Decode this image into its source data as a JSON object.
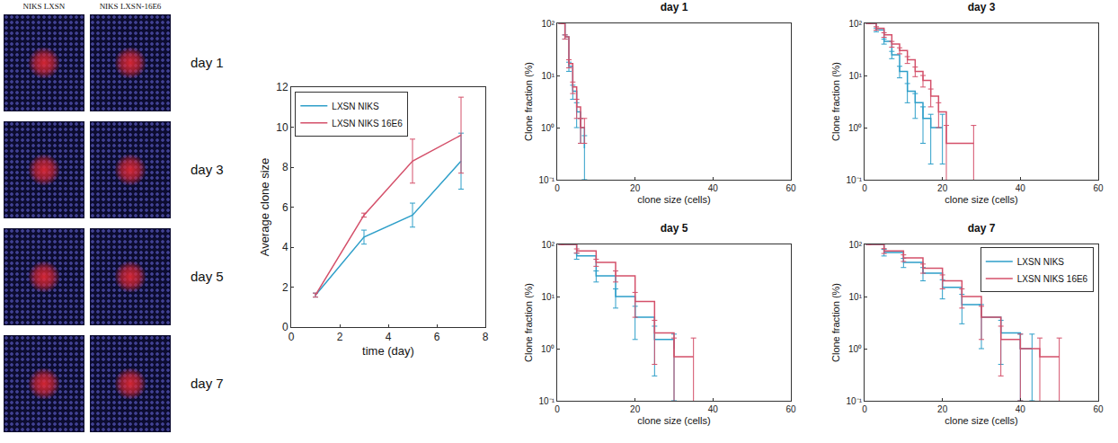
{
  "image_panel": {
    "columns": [
      "NIKS LXSN",
      "NIKS LXSN-16E6"
    ],
    "rows": [
      "day 1",
      "day 3",
      "day 5",
      "day 7"
    ]
  },
  "chart_data": [
    {
      "type": "line",
      "line_style": "solid",
      "xlabel": "time (day)",
      "ylabel": "Average clone size",
      "xlim": [
        0,
        8
      ],
      "xticks": [
        0,
        2,
        4,
        6,
        8
      ],
      "ylim": [
        0,
        12
      ],
      "yticks": [
        0,
        2,
        4,
        6,
        8,
        10,
        12
      ],
      "grid": false,
      "legend": "upper left",
      "series": [
        {
          "name": "LXSN NIKS",
          "color": "#2e9fc9",
          "x": [
            1,
            3,
            5,
            7
          ],
          "values": [
            1.6,
            4.5,
            5.6,
            8.3
          ],
          "errors": [
            0.1,
            0.35,
            0.6,
            1.4
          ]
        },
        {
          "name": "LXSN NIKS 16E6",
          "color": "#d4506a",
          "x": [
            1,
            3,
            5,
            7
          ],
          "values": [
            1.6,
            5.6,
            8.3,
            9.6
          ],
          "errors": [
            0.1,
            0.1,
            1.1,
            1.9
          ]
        }
      ]
    },
    {
      "type": "line",
      "line_style": "step",
      "title": "day 1",
      "xlabel": "clone size (cells)",
      "ylabel": "Clone fraction (%)",
      "xlim": [
        0,
        60
      ],
      "xticks": [
        0,
        20,
        40,
        60
      ],
      "ylim": [
        0.1,
        100
      ],
      "log": "y",
      "yticks": [
        {
          "value": 0.1,
          "label": "10⁻¹"
        },
        {
          "value": 1,
          "label": "10⁰"
        },
        {
          "value": 10,
          "label": "10¹"
        },
        {
          "value": 100,
          "label": "10²"
        }
      ],
      "series": [
        {
          "name": "LXSN NIKS",
          "color": "#2e9fc9",
          "x": [
            1,
            2,
            3,
            4,
            5,
            6,
            7
          ],
          "values": [
            100,
            55,
            15,
            5,
            2,
            1,
            0.4
          ],
          "errors": [
            0,
            5,
            3,
            1.5,
            1,
            0.5,
            0.3
          ]
        },
        {
          "name": "LXSN NIKS 16E6",
          "color": "#d4506a",
          "x": [
            1,
            2,
            3,
            4,
            5,
            6,
            7
          ],
          "values": [
            100,
            55,
            17,
            6,
            2.5,
            1,
            1
          ],
          "errors": [
            0,
            5,
            3,
            1.5,
            1,
            0.5,
            0.5
          ]
        }
      ]
    },
    {
      "type": "line",
      "line_style": "step",
      "title": "day 3",
      "xlabel": "clone size (cells)",
      "ylabel": "Clone fraction (%)",
      "xlim": [
        0,
        60
      ],
      "xticks": [
        0,
        20,
        40,
        60
      ],
      "ylim": [
        0.1,
        100
      ],
      "log": "y",
      "yticks": [
        {
          "value": 0.1,
          "label": "10⁻¹"
        },
        {
          "value": 1,
          "label": "10⁰"
        },
        {
          "value": 10,
          "label": "10¹"
        },
        {
          "value": 100,
          "label": "10²"
        }
      ],
      "series": [
        {
          "name": "LXSN NIKS",
          "color": "#2e9fc9",
          "x": [
            1,
            3,
            5,
            7,
            9,
            11,
            13,
            15,
            17,
            20
          ],
          "values": [
            100,
            75,
            45,
            25,
            12,
            5,
            3,
            1.5,
            1,
            1
          ],
          "errors": [
            0,
            6,
            5,
            4,
            3,
            2,
            1.5,
            1,
            0.8,
            0.8
          ]
        },
        {
          "name": "LXSN NIKS 16E6",
          "color": "#d4506a",
          "x": [
            1,
            3,
            5,
            7,
            9,
            11,
            13,
            15,
            17,
            19,
            21,
            28
          ],
          "values": [
            100,
            80,
            60,
            40,
            30,
            20,
            12,
            8,
            4,
            2,
            0.5,
            0.5
          ],
          "errors": [
            0,
            6,
            6,
            5,
            4,
            3,
            2.5,
            2,
            1.5,
            1,
            0.6,
            0.6
          ]
        }
      ]
    },
    {
      "type": "line",
      "line_style": "step",
      "title": "day 5",
      "xlabel": "clone size (cells)",
      "ylabel": "Clone fraction (%)",
      "xlim": [
        0,
        60
      ],
      "xticks": [
        0,
        20,
        40,
        60
      ],
      "ylim": [
        0.1,
        100
      ],
      "log": "y",
      "yticks": [
        {
          "value": 0.1,
          "label": "10⁻¹"
        },
        {
          "value": 1,
          "label": "10⁰"
        },
        {
          "value": 10,
          "label": "10¹"
        },
        {
          "value": 100,
          "label": "10²"
        }
      ],
      "series": [
        {
          "name": "LXSN NIKS",
          "color": "#2e9fc9",
          "x": [
            1,
            5,
            10,
            15,
            20,
            25,
            30
          ],
          "values": [
            100,
            60,
            25,
            10,
            4,
            1.5,
            1
          ],
          "errors": [
            0,
            8,
            6,
            4,
            2.5,
            1.2,
            0.9
          ]
        },
        {
          "name": "LXSN NIKS 16E6",
          "color": "#d4506a",
          "x": [
            1,
            5,
            10,
            15,
            20,
            25,
            30,
            35
          ],
          "values": [
            100,
            75,
            45,
            25,
            8,
            2,
            0.7,
            0.7
          ],
          "errors": [
            0,
            7,
            7,
            6,
            4,
            1.5,
            0.9,
            0.9
          ]
        }
      ]
    },
    {
      "type": "line",
      "line_style": "step",
      "title": "day 7",
      "xlabel": "clone size (cells)",
      "ylabel": "Clone fraction (%)",
      "xlim": [
        0,
        60
      ],
      "xticks": [
        0,
        20,
        40,
        60
      ],
      "ylim": [
        0.1,
        100
      ],
      "log": "y",
      "legend": "upper right",
      "yticks": [
        {
          "value": 0.1,
          "label": "10⁻¹"
        },
        {
          "value": 1,
          "label": "10⁰"
        },
        {
          "value": 10,
          "label": "10¹"
        },
        {
          "value": 100,
          "label": "10²"
        }
      ],
      "series": [
        {
          "name": "LXSN NIKS",
          "color": "#2e9fc9",
          "x": [
            1,
            5,
            10,
            15,
            20,
            25,
            30,
            35,
            40,
            43
          ],
          "values": [
            100,
            70,
            45,
            28,
            15,
            7,
            4,
            2,
            1,
            1
          ],
          "errors": [
            0,
            10,
            9,
            8,
            6,
            4,
            3,
            1.5,
            0.9,
            0.9
          ]
        },
        {
          "name": "LXSN NIKS 16E6",
          "color": "#d4506a",
          "x": [
            1,
            5,
            10,
            15,
            20,
            25,
            30,
            35,
            40,
            45,
            50
          ],
          "values": [
            100,
            75,
            55,
            35,
            20,
            10,
            4,
            1.5,
            1,
            0.7,
            0.7
          ],
          "errors": [
            0,
            8,
            8,
            7,
            6,
            4,
            2.5,
            1.2,
            0.9,
            0.9,
            0.9
          ]
        }
      ]
    }
  ]
}
